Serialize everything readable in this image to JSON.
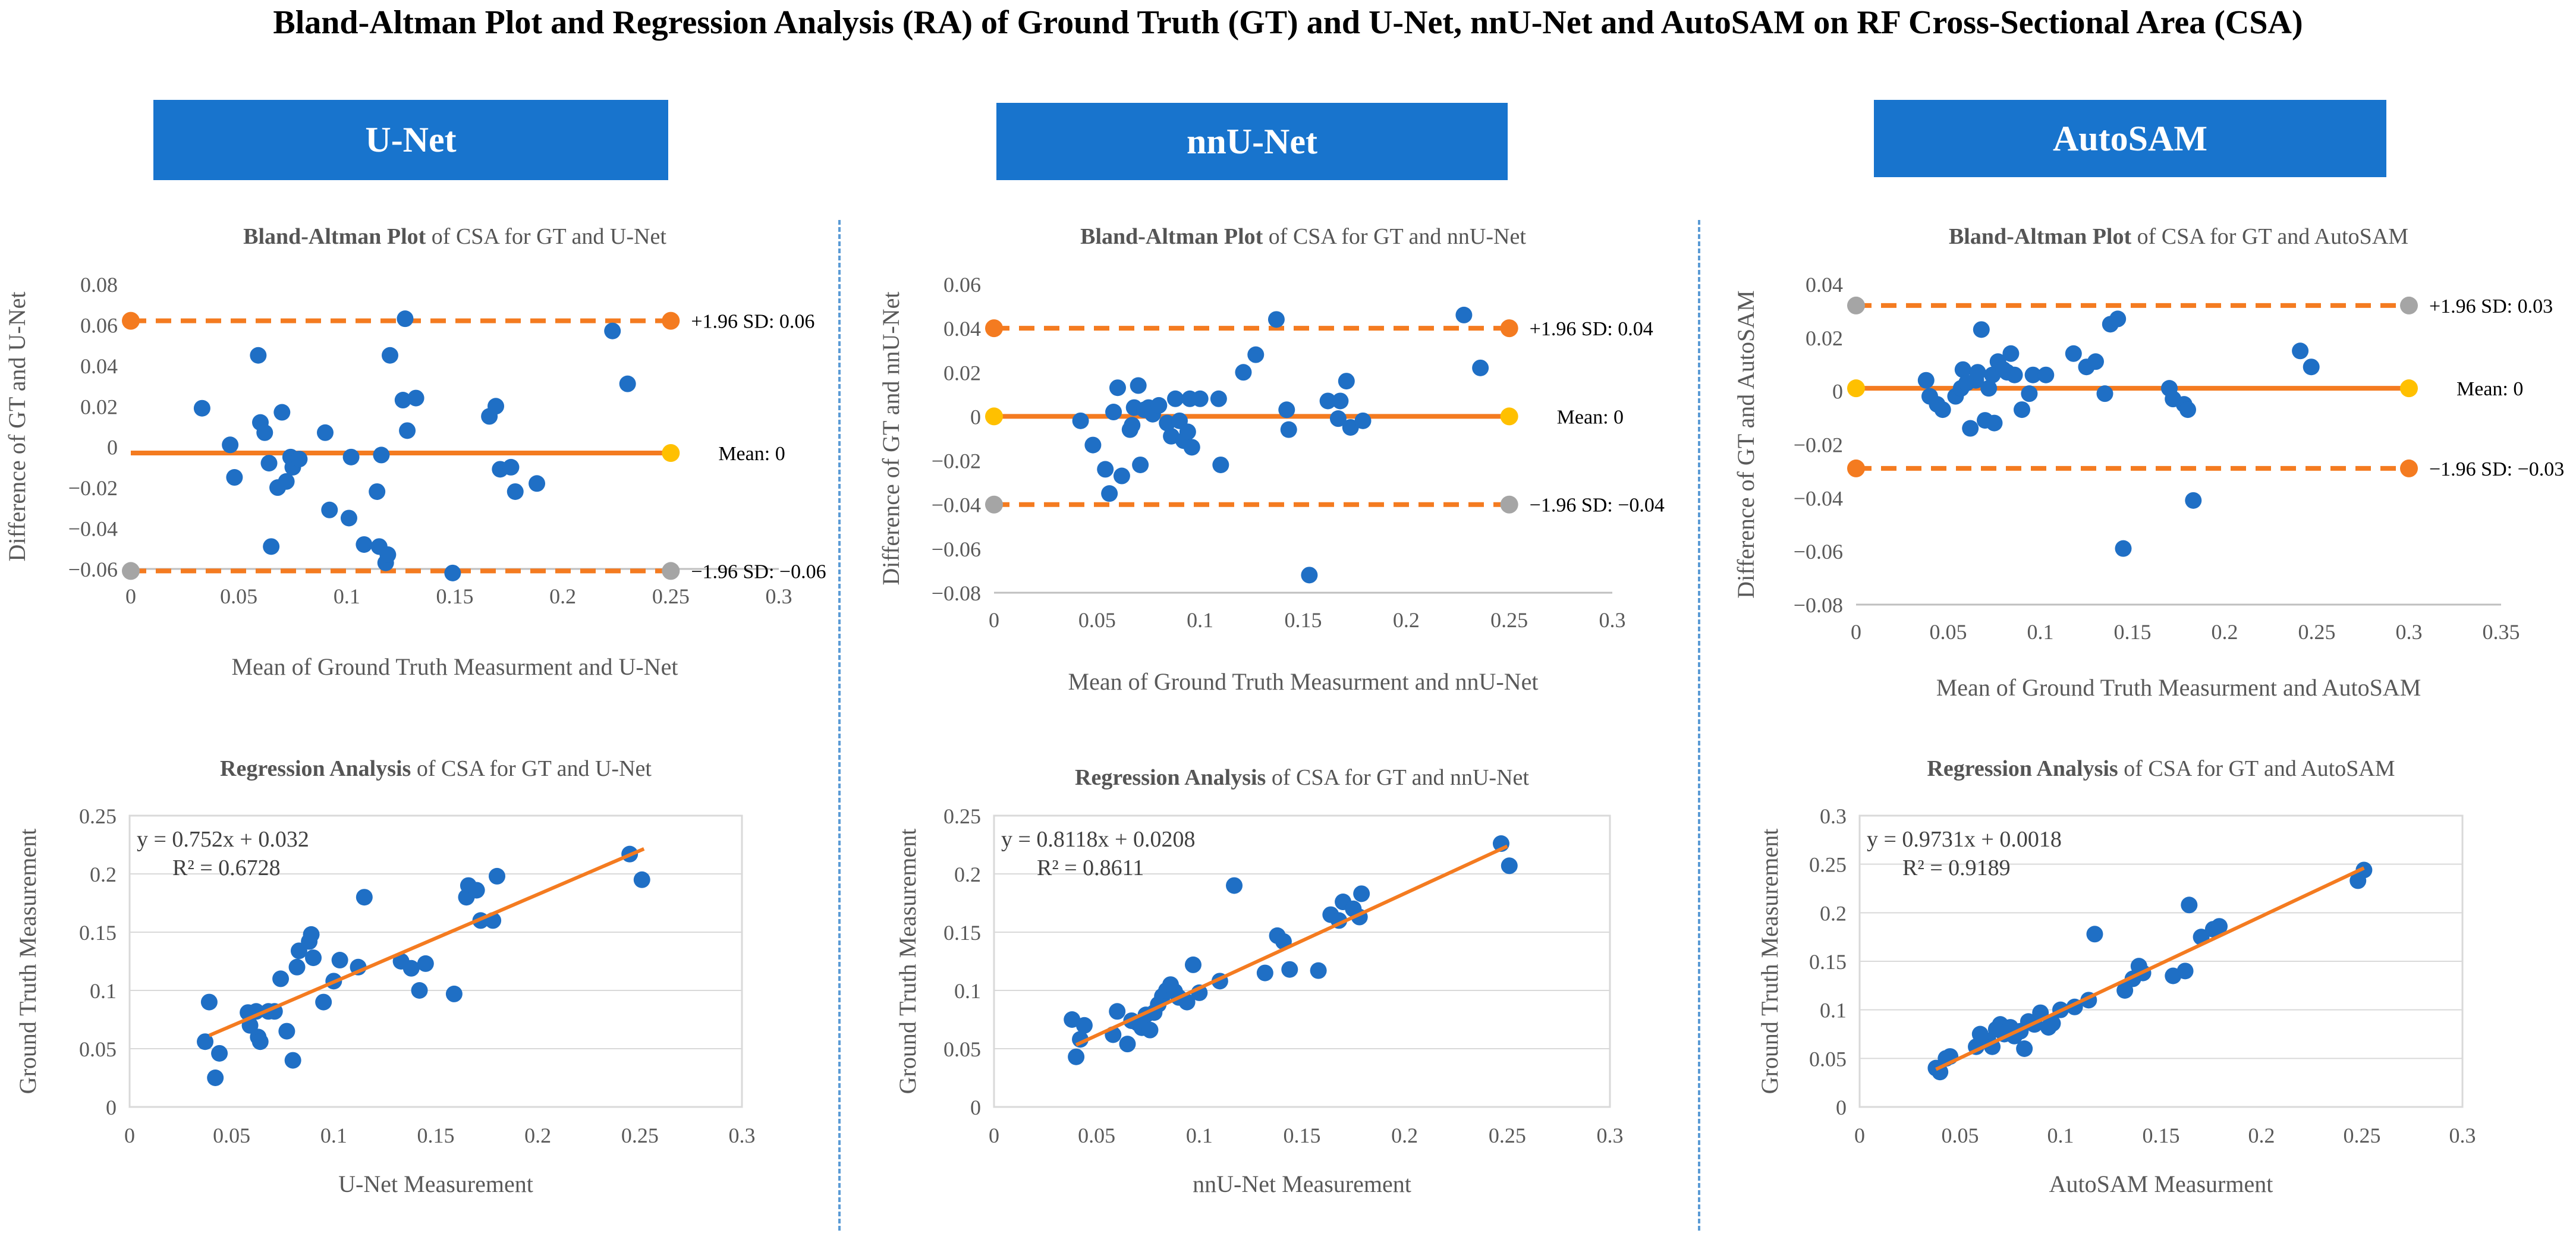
{
  "title": "Bland-Altman Plot and Regression Analysis (RA) of Ground Truth (GT) and U-Net, nnU-Net and AutoSAM on RF Cross-Sectional Area (CSA)",
  "columns": [
    {
      "label": "U-Net"
    },
    {
      "label": "nnU-Net"
    },
    {
      "label": "AutoSAM"
    }
  ],
  "colors": {
    "header": "#1874CD",
    "point": "#1F6FC5",
    "line": "#F47B20",
    "mean_end": "#FFC000",
    "low_end": "#A5A5A5",
    "divider": "#5B9BD5"
  },
  "chart_data": [
    {
      "id": "ba-unet",
      "type": "scatter",
      "kind": "bland-altman",
      "title_bold": "Bland-Altman Plot",
      "title_rest": " of CSA for GT and U-Net",
      "xlabel": "Mean of Ground Truth Measurment and U-Net",
      "ylabel": "Difference of GT and U-Net",
      "xlim": [
        0,
        0.3
      ],
      "ylim": [
        -0.06,
        0.08
      ],
      "xticks": [
        "0",
        "0.05",
        "0.1",
        "0.15",
        "0.2",
        "0.25",
        "0.3"
      ],
      "yticks": [
        "−0.06",
        "−0.04",
        "−0.02",
        "0",
        "0.02",
        "0.04",
        "0.06",
        "0.08"
      ],
      "x_line_end": 0.25,
      "mean": -0.003,
      "upper": 0.062,
      "lower": -0.061,
      "upper_label": "+1.96 SD: 0.06",
      "mean_label": "Mean: 0",
      "lower_label": "−1.96 SD: −0.06",
      "upper_start": "orange",
      "lower_start": "gray",
      "upper_end": "orange",
      "mean_end": "yellow",
      "lower_end": "gray",
      "points": [
        [
          0.033,
          0.019
        ],
        [
          0.046,
          0.001
        ],
        [
          0.048,
          -0.015
        ],
        [
          0.059,
          0.045
        ],
        [
          0.06,
          0.012
        ],
        [
          0.062,
          0.007
        ],
        [
          0.064,
          -0.008
        ],
        [
          0.065,
          -0.049
        ],
        [
          0.068,
          -0.02
        ],
        [
          0.07,
          0.017
        ],
        [
          0.072,
          -0.017
        ],
        [
          0.074,
          -0.005
        ],
        [
          0.075,
          -0.01
        ],
        [
          0.078,
          -0.006
        ],
        [
          0.09,
          0.007
        ],
        [
          0.092,
          -0.031
        ],
        [
          0.101,
          -0.035
        ],
        [
          0.102,
          -0.005
        ],
        [
          0.108,
          -0.048
        ],
        [
          0.114,
          -0.022
        ],
        [
          0.115,
          -0.049
        ],
        [
          0.116,
          -0.004
        ],
        [
          0.118,
          -0.057
        ],
        [
          0.119,
          -0.053
        ],
        [
          0.12,
          0.045
        ],
        [
          0.126,
          0.023
        ],
        [
          0.127,
          0.063
        ],
        [
          0.128,
          0.008
        ],
        [
          0.132,
          0.024
        ],
        [
          0.149,
          -0.062
        ],
        [
          0.166,
          0.015
        ],
        [
          0.169,
          0.02
        ],
        [
          0.171,
          -0.011
        ],
        [
          0.176,
          -0.01
        ],
        [
          0.178,
          -0.022
        ],
        [
          0.188,
          -0.018
        ],
        [
          0.223,
          0.057
        ],
        [
          0.23,
          0.031
        ]
      ]
    },
    {
      "id": "ba-nnunet",
      "type": "scatter",
      "kind": "bland-altman",
      "title_bold": "Bland-Altman Plot",
      "title_rest": " of CSA for GT and nnU-Net",
      "xlabel": "Mean of Ground Truth Measurment and nnU-Net",
      "ylabel": "Difference of GT and nnU-Net",
      "xlim": [
        0,
        0.3
      ],
      "ylim": [
        -0.08,
        0.06
      ],
      "xticks": [
        "0",
        "0.05",
        "0.1",
        "0.15",
        "0.2",
        "0.25",
        "0.3"
      ],
      "yticks": [
        "−0.08",
        "−0.06",
        "−0.04",
        "−0.02",
        "0",
        "0.02",
        "0.04",
        "0.06"
      ],
      "x_line_end": 0.25,
      "mean": 0,
      "upper": 0.04,
      "lower": -0.04,
      "upper_label": "+1.96 SD: 0.04",
      "mean_label": "Mean: 0",
      "lower_label": "−1.96 SD: −0.04",
      "upper_start": "orange",
      "lower_start": "gray",
      "mean_start": "yellow",
      "upper_end": "orange",
      "mean_end": "yellow",
      "lower_end": "gray",
      "points": [
        [
          0.042,
          -0.002
        ],
        [
          0.048,
          -0.013
        ],
        [
          0.054,
          -0.024
        ],
        [
          0.056,
          -0.035
        ],
        [
          0.058,
          0.002
        ],
        [
          0.06,
          0.013
        ],
        [
          0.062,
          -0.027
        ],
        [
          0.066,
          -0.006
        ],
        [
          0.067,
          -0.004
        ],
        [
          0.068,
          0.004
        ],
        [
          0.07,
          0.014
        ],
        [
          0.071,
          -0.022
        ],
        [
          0.073,
          0.003
        ],
        [
          0.075,
          0.004
        ],
        [
          0.077,
          0.001
        ],
        [
          0.08,
          0.005
        ],
        [
          0.084,
          -0.003
        ],
        [
          0.086,
          -0.009
        ],
        [
          0.088,
          0.008
        ],
        [
          0.09,
          -0.002
        ],
        [
          0.092,
          -0.011
        ],
        [
          0.094,
          -0.007
        ],
        [
          0.095,
          0.008
        ],
        [
          0.096,
          -0.014
        ],
        [
          0.1,
          0.008
        ],
        [
          0.109,
          0.008
        ],
        [
          0.11,
          -0.022
        ],
        [
          0.121,
          0.02
        ],
        [
          0.127,
          0.028
        ],
        [
          0.137,
          0.044
        ],
        [
          0.142,
          0.003
        ],
        [
          0.143,
          -0.006
        ],
        [
          0.162,
          0.007
        ],
        [
          0.167,
          -0.001
        ],
        [
          0.168,
          0.007
        ],
        [
          0.171,
          0.016
        ],
        [
          0.173,
          -0.005
        ],
        [
          0.179,
          -0.002
        ],
        [
          0.153,
          -0.072
        ],
        [
          0.228,
          0.046
        ],
        [
          0.236,
          0.022
        ]
      ]
    },
    {
      "id": "ba-autosam",
      "type": "scatter",
      "kind": "bland-altman",
      "title_bold": "Bland-Altman Plot",
      "title_rest": " of CSA for GT and AutoSAM",
      "xlabel": "Mean of Ground Truth Measurment and AutoSAM",
      "ylabel": "Difference of GT and AutoSAM",
      "xlim": [
        0,
        0.35
      ],
      "ylim": [
        -0.08,
        0.04
      ],
      "xticks": [
        "0",
        "0.05",
        "0.1",
        "0.15",
        "0.2",
        "0.25",
        "0.3",
        "0.35"
      ],
      "yticks": [
        "−0.08",
        "−0.06",
        "−0.04",
        "−0.02",
        "0",
        "0.02",
        "0.04"
      ],
      "x_line_end": 0.3,
      "mean": 0.001,
      "upper": 0.032,
      "lower": -0.029,
      "upper_label": "+1.96 SD: 0.03",
      "mean_label": "Mean: 0",
      "lower_label": "−1.96 SD: −0.03",
      "upper_start": "gray",
      "lower_start": "orange",
      "mean_start": "yellow",
      "upper_end": "gray",
      "mean_end": "yellow",
      "lower_end": "orange",
      "points": [
        [
          0.038,
          0.004
        ],
        [
          0.04,
          -0.002
        ],
        [
          0.044,
          -0.005
        ],
        [
          0.047,
          -0.007
        ],
        [
          0.054,
          -0.002
        ],
        [
          0.057,
          0.001
        ],
        [
          0.058,
          0.008
        ],
        [
          0.06,
          0.003
        ],
        [
          0.062,
          -0.014
        ],
        [
          0.065,
          0.004
        ],
        [
          0.066,
          0.007
        ],
        [
          0.068,
          0.023
        ],
        [
          0.07,
          -0.011
        ],
        [
          0.072,
          0.001
        ],
        [
          0.074,
          0.006
        ],
        [
          0.075,
          -0.012
        ],
        [
          0.077,
          0.011
        ],
        [
          0.08,
          0.008
        ],
        [
          0.082,
          0.007
        ],
        [
          0.084,
          0.014
        ],
        [
          0.086,
          0.006
        ],
        [
          0.09,
          -0.007
        ],
        [
          0.094,
          -0.001
        ],
        [
          0.096,
          0.006
        ],
        [
          0.103,
          0.006
        ],
        [
          0.118,
          0.014
        ],
        [
          0.125,
          0.009
        ],
        [
          0.13,
          0.011
        ],
        [
          0.135,
          -0.001
        ],
        [
          0.138,
          0.025
        ],
        [
          0.142,
          0.027
        ],
        [
          0.145,
          -0.059
        ],
        [
          0.17,
          0.001
        ],
        [
          0.172,
          -0.003
        ],
        [
          0.178,
          -0.005
        ],
        [
          0.18,
          -0.007
        ],
        [
          0.183,
          -0.041
        ],
        [
          0.241,
          0.015
        ],
        [
          0.247,
          0.009
        ]
      ]
    },
    {
      "id": "ra-unet",
      "type": "scatter",
      "kind": "regression",
      "title_bold": "Regression Analysis",
      "title_rest": " of CSA for GT and U-Net",
      "xlabel": "U-Net Measurement",
      "ylabel": "Ground Truth Measurement",
      "xlim": [
        0,
        0.3
      ],
      "ylim": [
        0,
        0.25
      ],
      "xticks": [
        "0",
        "0.05",
        "0.1",
        "0.15",
        "0.2",
        "0.25",
        "0.3"
      ],
      "yticks": [
        "0",
        "0.05",
        "0.1",
        "0.15",
        "0.2",
        "0.25"
      ],
      "equation": "y = 0.752x + 0.032",
      "r2": "R² = 0.6728",
      "slope": 0.752,
      "intercept": 0.032,
      "fit_range": [
        0.039,
        0.252
      ],
      "points": [
        [
          0.037,
          0.056
        ],
        [
          0.039,
          0.09
        ],
        [
          0.042,
          0.025
        ],
        [
          0.044,
          0.046
        ],
        [
          0.058,
          0.081
        ],
        [
          0.059,
          0.07
        ],
        [
          0.062,
          0.082
        ],
        [
          0.063,
          0.06
        ],
        [
          0.064,
          0.056
        ],
        [
          0.068,
          0.082
        ],
        [
          0.071,
          0.082
        ],
        [
          0.074,
          0.11
        ],
        [
          0.077,
          0.065
        ],
        [
          0.08,
          0.04
        ],
        [
          0.082,
          0.12
        ],
        [
          0.083,
          0.134
        ],
        [
          0.088,
          0.142
        ],
        [
          0.089,
          0.148
        ],
        [
          0.09,
          0.128
        ],
        [
          0.095,
          0.09
        ],
        [
          0.1,
          0.108
        ],
        [
          0.103,
          0.126
        ],
        [
          0.112,
          0.12
        ],
        [
          0.115,
          0.18
        ],
        [
          0.133,
          0.125
        ],
        [
          0.138,
          0.119
        ],
        [
          0.142,
          0.1
        ],
        [
          0.145,
          0.123
        ],
        [
          0.159,
          0.097
        ],
        [
          0.165,
          0.18
        ],
        [
          0.166,
          0.19
        ],
        [
          0.17,
          0.186
        ],
        [
          0.172,
          0.16
        ],
        [
          0.178,
          0.16
        ],
        [
          0.18,
          0.198
        ],
        [
          0.245,
          0.217
        ],
        [
          0.251,
          0.195
        ]
      ]
    },
    {
      "id": "ra-nnunet",
      "type": "scatter",
      "kind": "regression",
      "title_bold": "Regression Analysis",
      "title_rest": " of CSA for GT and nnU-Net",
      "xlabel": "nnU-Net Measurement",
      "ylabel": "Ground Truth Measurement",
      "xlim": [
        0,
        0.3
      ],
      "ylim": [
        0,
        0.25
      ],
      "xticks": [
        "0",
        "0.05",
        "0.1",
        "0.15",
        "0.2",
        "0.25",
        "0.3"
      ],
      "yticks": [
        "0",
        "0.05",
        "0.1",
        "0.15",
        "0.2",
        "0.25"
      ],
      "equation": "y = 0.8118x + 0.0208",
      "r2": "R² = 0.8611",
      "slope": 0.8118,
      "intercept": 0.0208,
      "fit_range": [
        0.04,
        0.25
      ],
      "points": [
        [
          0.038,
          0.075
        ],
        [
          0.04,
          0.043
        ],
        [
          0.042,
          0.058
        ],
        [
          0.044,
          0.07
        ],
        [
          0.058,
          0.062
        ],
        [
          0.06,
          0.082
        ],
        [
          0.065,
          0.054
        ],
        [
          0.067,
          0.074
        ],
        [
          0.07,
          0.072
        ],
        [
          0.072,
          0.068
        ],
        [
          0.074,
          0.079
        ],
        [
          0.076,
          0.066
        ],
        [
          0.078,
          0.081
        ],
        [
          0.08,
          0.088
        ],
        [
          0.082,
          0.095
        ],
        [
          0.084,
          0.1
        ],
        [
          0.086,
          0.105
        ],
        [
          0.088,
          0.099
        ],
        [
          0.09,
          0.094
        ],
        [
          0.094,
          0.09
        ],
        [
          0.097,
          0.122
        ],
        [
          0.1,
          0.098
        ],
        [
          0.11,
          0.108
        ],
        [
          0.117,
          0.19
        ],
        [
          0.132,
          0.115
        ],
        [
          0.138,
          0.147
        ],
        [
          0.141,
          0.142
        ],
        [
          0.144,
          0.118
        ],
        [
          0.158,
          0.117
        ],
        [
          0.164,
          0.165
        ],
        [
          0.168,
          0.16
        ],
        [
          0.17,
          0.176
        ],
        [
          0.175,
          0.17
        ],
        [
          0.178,
          0.163
        ],
        [
          0.179,
          0.183
        ],
        [
          0.247,
          0.226
        ],
        [
          0.251,
          0.207
        ]
      ]
    },
    {
      "id": "ra-autosam",
      "type": "scatter",
      "kind": "regression",
      "title_bold": "Regression Analysis",
      "title_rest": " of CSA for GT and AutoSAM",
      "xlabel": "AutoSAM Measurment",
      "ylabel": "Ground Truth Measurement",
      "xlim": [
        0,
        0.3
      ],
      "ylim": [
        0,
        0.3
      ],
      "xticks": [
        "0",
        "0.05",
        "0.1",
        "0.15",
        "0.2",
        "0.25",
        "0.3"
      ],
      "yticks": [
        "0",
        "0.05",
        "0.1",
        "0.15",
        "0.2",
        "0.25",
        "0.3"
      ],
      "equation": "y = 0.9731x + 0.0018",
      "r2": "R² = 0.9189",
      "slope": 0.9731,
      "intercept": 0.0018,
      "fit_range": [
        0.038,
        0.251
      ],
      "points": [
        [
          0.038,
          0.04
        ],
        [
          0.04,
          0.036
        ],
        [
          0.043,
          0.05
        ],
        [
          0.045,
          0.052
        ],
        [
          0.058,
          0.062
        ],
        [
          0.06,
          0.075
        ],
        [
          0.064,
          0.068
        ],
        [
          0.066,
          0.062
        ],
        [
          0.068,
          0.08
        ],
        [
          0.07,
          0.085
        ],
        [
          0.072,
          0.075
        ],
        [
          0.075,
          0.082
        ],
        [
          0.077,
          0.073
        ],
        [
          0.08,
          0.078
        ],
        [
          0.082,
          0.06
        ],
        [
          0.084,
          0.088
        ],
        [
          0.087,
          0.085
        ],
        [
          0.09,
          0.097
        ],
        [
          0.094,
          0.082
        ],
        [
          0.096,
          0.086
        ],
        [
          0.1,
          0.1
        ],
        [
          0.107,
          0.103
        ],
        [
          0.114,
          0.11
        ],
        [
          0.117,
          0.178
        ],
        [
          0.132,
          0.12
        ],
        [
          0.136,
          0.132
        ],
        [
          0.139,
          0.145
        ],
        [
          0.141,
          0.138
        ],
        [
          0.156,
          0.135
        ],
        [
          0.162,
          0.14
        ],
        [
          0.164,
          0.208
        ],
        [
          0.17,
          0.175
        ],
        [
          0.176,
          0.183
        ],
        [
          0.179,
          0.186
        ],
        [
          0.248,
          0.233
        ],
        [
          0.251,
          0.244
        ]
      ]
    }
  ]
}
